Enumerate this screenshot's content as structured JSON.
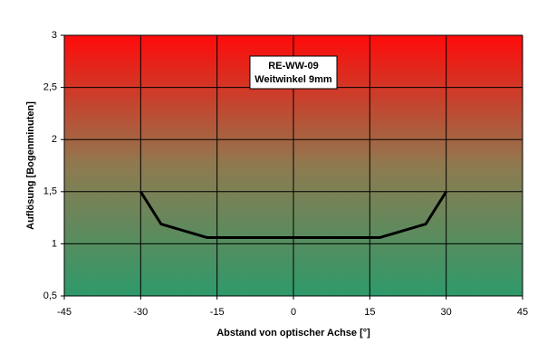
{
  "chart_data": {
    "type": "line",
    "annotation": [
      "RE-WW-09",
      "Weitwinkel 9mm"
    ],
    "x_label": "Abstand von optischer Achse [°]",
    "y_label": "Auflösung [Bogenminuten]",
    "x": [
      -30,
      -26,
      -17,
      17,
      26,
      30
    ],
    "series": [
      {
        "color": "#000000",
        "values": [
          1.5,
          1.19,
          1.06,
          1.06,
          1.19,
          1.5
        ]
      }
    ],
    "xlim": [
      -45,
      45
    ],
    "xticks": [
      -45,
      -30,
      -15,
      0,
      15,
      30,
      45
    ],
    "ylim": [
      0.5,
      3
    ],
    "yticks": [
      {
        "value": 0.5,
        "label": "0,5"
      },
      1,
      {
        "value": 1.5,
        "label": "1,5"
      },
      2,
      {
        "value": 2.5,
        "label": "2,5"
      },
      3
    ],
    "grid": true
  }
}
